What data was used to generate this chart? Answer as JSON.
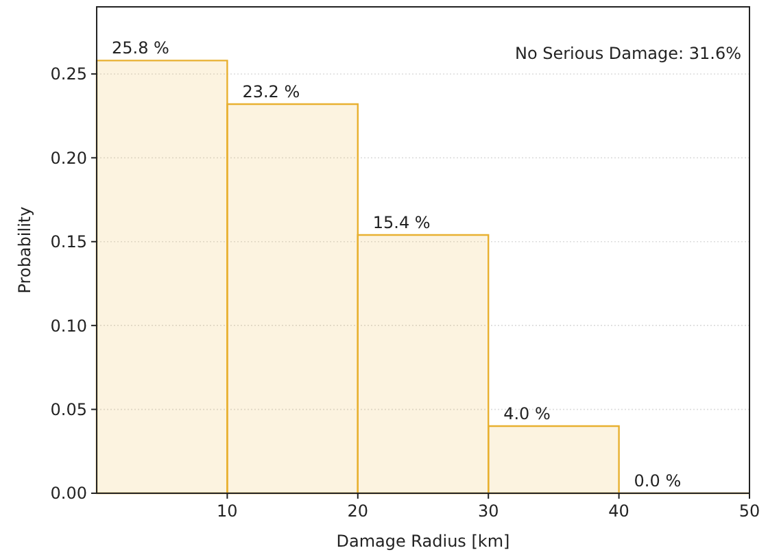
{
  "chart_data": {
    "type": "histogram",
    "xlabel": "Damage Radius [km]",
    "ylabel": "Probability",
    "bins": [
      0,
      10,
      20,
      30,
      40,
      50
    ],
    "values": [
      0.258,
      0.232,
      0.154,
      0.04,
      0.0
    ],
    "value_labels": [
      "25.8 %",
      "23.2 %",
      "15.4 %",
      "4.0 %",
      "0.0 %"
    ],
    "color": "#e8b030",
    "xlim": [
      0,
      50
    ],
    "xticks": [
      10,
      20,
      30,
      40,
      50
    ],
    "ylim": [
      0,
      0.29
    ],
    "yticks": [
      {
        "value": 0,
        "label": "0.00"
      },
      {
        "value": 0.05,
        "label": "0.05"
      },
      {
        "value": 0.1,
        "label": "0.10"
      },
      {
        "value": 0.15,
        "label": "0.15"
      },
      {
        "value": 0.2,
        "label": "0.20"
      },
      {
        "value": 0.25,
        "label": "0.25"
      }
    ],
    "grid": "y",
    "annotations": [
      "No Serious Damage: 31.6%"
    ]
  }
}
